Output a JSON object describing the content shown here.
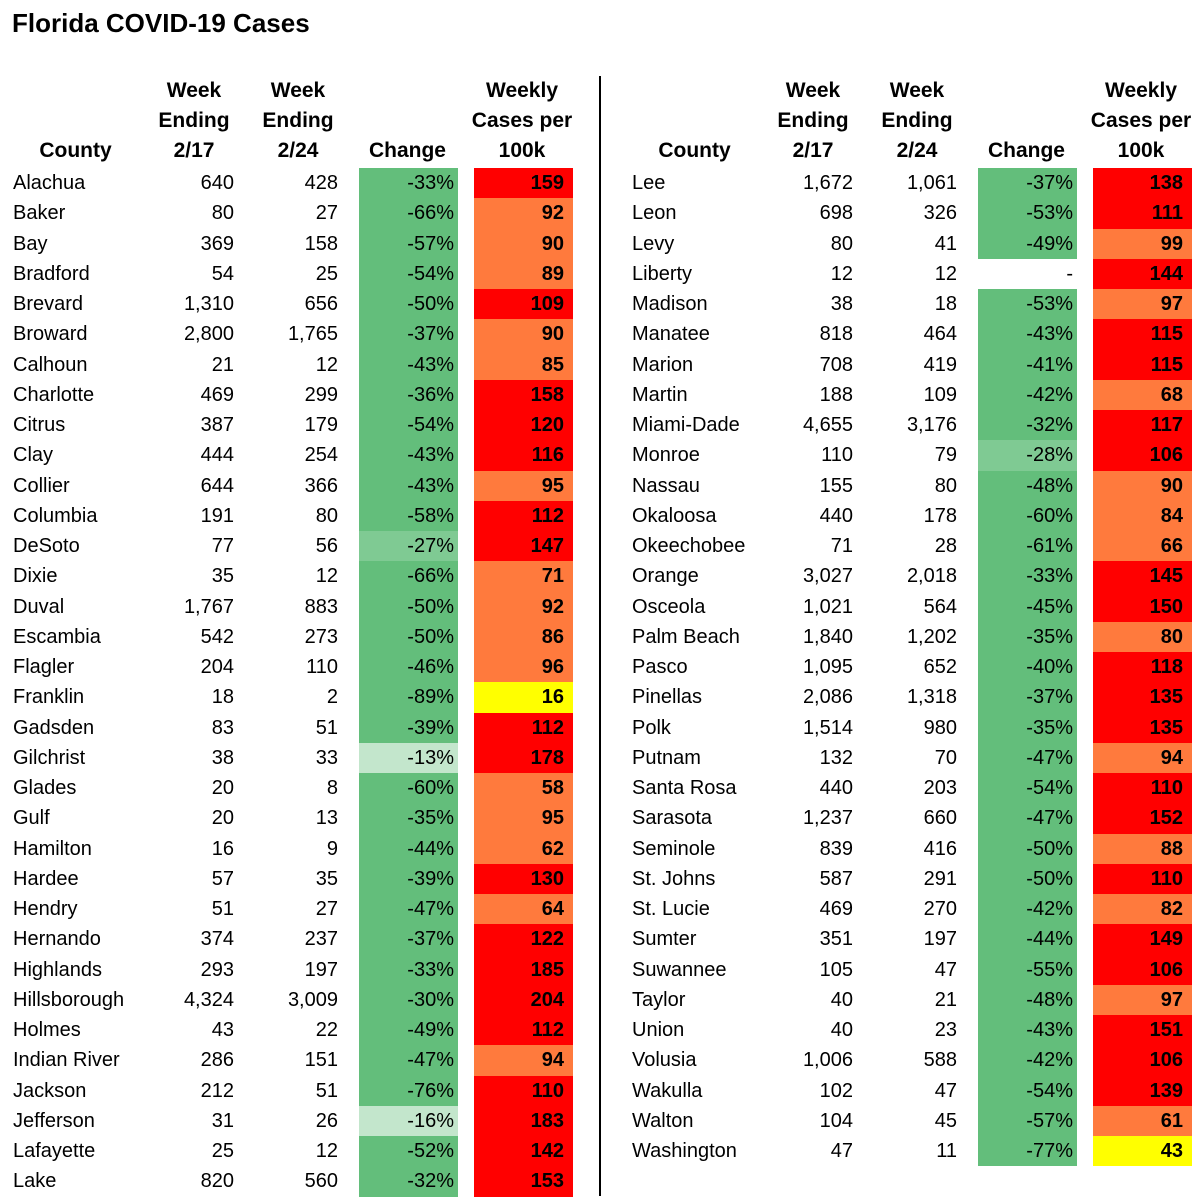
{
  "title": "Florida COVID-19 Cases",
  "headers": {
    "county": "County",
    "week1": "Week\nEnding\n2/17",
    "week2": "Week\nEnding\n2/24",
    "change": "Change",
    "rate": "Weekly\nCases per\n100k"
  },
  "colors": {
    "change_green": "#63be7b",
    "change_light": "#7fca93",
    "change_pale": "#c3e6cc",
    "rate_red": "#ff0000",
    "rate_orange": "#ff7a3d",
    "rate_yellow": "#ffff00"
  },
  "left_rows": [
    [
      "Alachua",
      "640",
      "428",
      "-33%",
      "159"
    ],
    [
      "Baker",
      "80",
      "27",
      "-66%",
      "92"
    ],
    [
      "Bay",
      "369",
      "158",
      "-57%",
      "90"
    ],
    [
      "Bradford",
      "54",
      "25",
      "-54%",
      "89"
    ],
    [
      "Brevard",
      "1,310",
      "656",
      "-50%",
      "109"
    ],
    [
      "Broward",
      "2,800",
      "1,765",
      "-37%",
      "90"
    ],
    [
      "Calhoun",
      "21",
      "12",
      "-43%",
      "85"
    ],
    [
      "Charlotte",
      "469",
      "299",
      "-36%",
      "158"
    ],
    [
      "Citrus",
      "387",
      "179",
      "-54%",
      "120"
    ],
    [
      "Clay",
      "444",
      "254",
      "-43%",
      "116"
    ],
    [
      "Collier",
      "644",
      "366",
      "-43%",
      "95"
    ],
    [
      "Columbia",
      "191",
      "80",
      "-58%",
      "112"
    ],
    [
      "DeSoto",
      "77",
      "56",
      "-27%",
      "147"
    ],
    [
      "Dixie",
      "35",
      "12",
      "-66%",
      "71"
    ],
    [
      "Duval",
      "1,767",
      "883",
      "-50%",
      "92"
    ],
    [
      "Escambia",
      "542",
      "273",
      "-50%",
      "86"
    ],
    [
      "Flagler",
      "204",
      "110",
      "-46%",
      "96"
    ],
    [
      "Franklin",
      "18",
      "2",
      "-89%",
      "16"
    ],
    [
      "Gadsden",
      "83",
      "51",
      "-39%",
      "112"
    ],
    [
      "Gilchrist",
      "38",
      "33",
      "-13%",
      "178"
    ],
    [
      "Glades",
      "20",
      "8",
      "-60%",
      "58"
    ],
    [
      "Gulf",
      "20",
      "13",
      "-35%",
      "95"
    ],
    [
      "Hamilton",
      "16",
      "9",
      "-44%",
      "62"
    ],
    [
      "Hardee",
      "57",
      "35",
      "-39%",
      "130"
    ],
    [
      "Hendry",
      "51",
      "27",
      "-47%",
      "64"
    ],
    [
      "Hernando",
      "374",
      "237",
      "-37%",
      "122"
    ],
    [
      "Highlands",
      "293",
      "197",
      "-33%",
      "185"
    ],
    [
      "Hillsborough",
      "4,324",
      "3,009",
      "-30%",
      "204"
    ],
    [
      "Holmes",
      "43",
      "22",
      "-49%",
      "112"
    ],
    [
      "Indian River",
      "286",
      "151",
      "-47%",
      "94"
    ],
    [
      "Jackson",
      "212",
      "51",
      "-76%",
      "110"
    ],
    [
      "Jefferson",
      "31",
      "26",
      "-16%",
      "183"
    ],
    [
      "Lafayette",
      "25",
      "12",
      "-52%",
      "142"
    ],
    [
      "Lake",
      "820",
      "560",
      "-32%",
      "153"
    ]
  ],
  "right_rows": [
    [
      "Lee",
      "1,672",
      "1,061",
      "-37%",
      "138"
    ],
    [
      "Leon",
      "698",
      "326",
      "-53%",
      "111"
    ],
    [
      "Levy",
      "80",
      "41",
      "-49%",
      "99"
    ],
    [
      "Liberty",
      "12",
      "12",
      "-",
      "144"
    ],
    [
      "Madison",
      "38",
      "18",
      "-53%",
      "97"
    ],
    [
      "Manatee",
      "818",
      "464",
      "-43%",
      "115"
    ],
    [
      "Marion",
      "708",
      "419",
      "-41%",
      "115"
    ],
    [
      "Martin",
      "188",
      "109",
      "-42%",
      "68"
    ],
    [
      "Miami-Dade",
      "4,655",
      "3,176",
      "-32%",
      "117"
    ],
    [
      "Monroe",
      "110",
      "79",
      "-28%",
      "106"
    ],
    [
      "Nassau",
      "155",
      "80",
      "-48%",
      "90"
    ],
    [
      "Okaloosa",
      "440",
      "178",
      "-60%",
      "84"
    ],
    [
      "Okeechobee",
      "71",
      "28",
      "-61%",
      "66"
    ],
    [
      "Orange",
      "3,027",
      "2,018",
      "-33%",
      "145"
    ],
    [
      "Osceola",
      "1,021",
      "564",
      "-45%",
      "150"
    ],
    [
      "Palm Beach",
      "1,840",
      "1,202",
      "-35%",
      "80"
    ],
    [
      "Pasco",
      "1,095",
      "652",
      "-40%",
      "118"
    ],
    [
      "Pinellas",
      "2,086",
      "1,318",
      "-37%",
      "135"
    ],
    [
      "Polk",
      "1,514",
      "980",
      "-35%",
      "135"
    ],
    [
      "Putnam",
      "132",
      "70",
      "-47%",
      "94"
    ],
    [
      "Santa Rosa",
      "440",
      "203",
      "-54%",
      "110"
    ],
    [
      "Sarasota",
      "1,237",
      "660",
      "-47%",
      "152"
    ],
    [
      "Seminole",
      "839",
      "416",
      "-50%",
      "88"
    ],
    [
      "St. Johns",
      "587",
      "291",
      "-50%",
      "110"
    ],
    [
      "St. Lucie",
      "469",
      "270",
      "-42%",
      "82"
    ],
    [
      "Sumter",
      "351",
      "197",
      "-44%",
      "149"
    ],
    [
      "Suwannee",
      "105",
      "47",
      "-55%",
      "106"
    ],
    [
      "Taylor",
      "40",
      "21",
      "-48%",
      "97"
    ],
    [
      "Union",
      "40",
      "23",
      "-43%",
      "151"
    ],
    [
      "Volusia",
      "1,006",
      "588",
      "-42%",
      "106"
    ],
    [
      "Wakulla",
      "102",
      "47",
      "-54%",
      "139"
    ],
    [
      "Walton",
      "104",
      "45",
      "-57%",
      "61"
    ],
    [
      "Washington",
      "47",
      "11",
      "-77%",
      "43"
    ]
  ]
}
